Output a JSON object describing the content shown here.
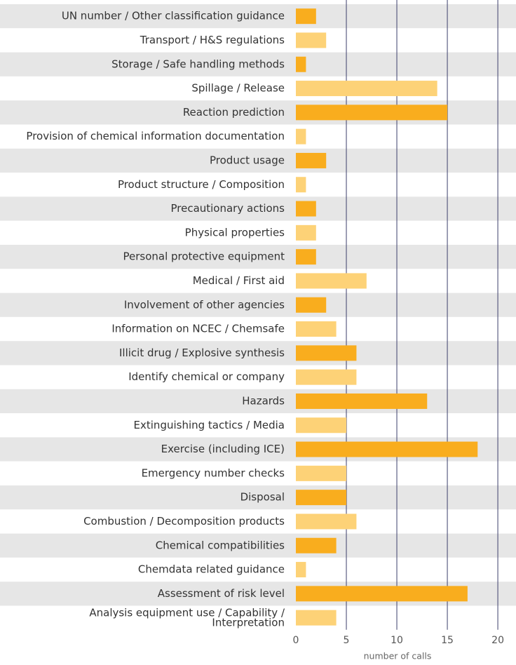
{
  "chart_data": {
    "type": "barh",
    "categories": [
      "UN number / Other classification guidance",
      "Transport / H&S regulations",
      "Storage / Safe handling methods",
      "Spillage / Release",
      "Reaction prediction",
      "Provision of chemical information documentation",
      "Product usage",
      "Product structure / Composition",
      "Precautionary actions",
      "Physical properties",
      "Personal protective equipment",
      "Medical / First aid",
      "Involvement of other agencies",
      "Information on NCEC / Chemsafe",
      "Illicit drug / Explosive synthesis",
      "Identify chemical or company",
      "Hazards",
      "Extinguishing tactics / Media",
      "Exercise (including ICE)",
      "Emergency number checks",
      "Disposal",
      "Combustion / Decomposition products",
      "Chemical compatibilities",
      "Chemdata related guidance",
      "Assessment of risk level",
      "Analysis equipment use / Capability /\nInterpretation"
    ],
    "values": [
      2,
      3,
      1,
      14,
      15,
      1,
      3,
      1,
      2,
      2,
      2,
      7,
      3,
      4,
      6,
      6,
      13,
      5,
      18,
      5,
      5,
      6,
      4,
      1,
      17,
      4
    ],
    "colors": [
      "#f9ad1e",
      "#fdd277",
      "#f9ad1e",
      "#fdd277",
      "#f9ad1e",
      "#fdd277",
      "#f9ad1e",
      "#fdd277",
      "#f9ad1e",
      "#fdd277",
      "#f9ad1e",
      "#fdd277",
      "#f9ad1e",
      "#fdd277",
      "#f9ad1e",
      "#fdd277",
      "#f9ad1e",
      "#fdd277",
      "#f9ad1e",
      "#fdd277",
      "#f9ad1e",
      "#fdd277",
      "#f9ad1e",
      "#fdd277",
      "#f9ad1e",
      "#fdd277"
    ],
    "band_colors": [
      "#e6e6e6",
      "#ffffff"
    ],
    "grid_color": "#3d3f6b",
    "xlabel": "number of calls",
    "xlim": [
      0,
      21.8
    ],
    "xticks": [
      0,
      5,
      10,
      15,
      20
    ],
    "grid": true
  }
}
